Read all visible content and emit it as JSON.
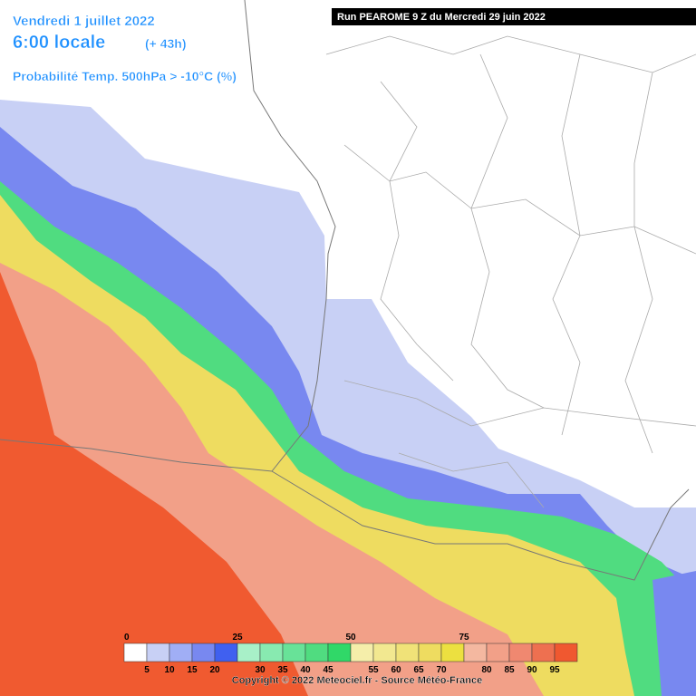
{
  "header": {
    "date": "Vendredi 1 juillet 2022",
    "time": "6:00 locale",
    "lead": "(+ 43h)",
    "parameter": "Probabilité Temp. 500hPa > -10°C (%)",
    "run": "Run PEAROME 9 Z du Mercredi 29 juin 2022"
  },
  "legend": {
    "bins": [
      {
        "value": 0,
        "color": "#ffffff"
      },
      {
        "value": 5,
        "color": "#c8d0f5"
      },
      {
        "value": 10,
        "color": "#a0aef5"
      },
      {
        "value": 15,
        "color": "#7888f0"
      },
      {
        "value": 20,
        "color": "#4060f0"
      },
      {
        "value": 25,
        "color": "#a8f0c8"
      },
      {
        "value": 30,
        "color": "#88eab0"
      },
      {
        "value": 35,
        "color": "#68e298"
      },
      {
        "value": 40,
        "color": "#50dc80"
      },
      {
        "value": 45,
        "color": "#30d868"
      },
      {
        "value": 50,
        "color": "#f5eeaa"
      },
      {
        "value": 55,
        "color": "#f2e890"
      },
      {
        "value": 60,
        "color": "#f0e278"
      },
      {
        "value": 65,
        "color": "#eedc60"
      },
      {
        "value": 70,
        "color": "#ece040"
      },
      {
        "value": 75,
        "color": "#f4b8a0"
      },
      {
        "value": 80,
        "color": "#f2a088"
      },
      {
        "value": 85,
        "color": "#f08870"
      },
      {
        "value": 90,
        "color": "#ee7050"
      },
      {
        "value": 95,
        "color": "#f05830"
      }
    ]
  },
  "footer": "Copyright © 2022 Meteociel.fr - Source Météo-France"
}
